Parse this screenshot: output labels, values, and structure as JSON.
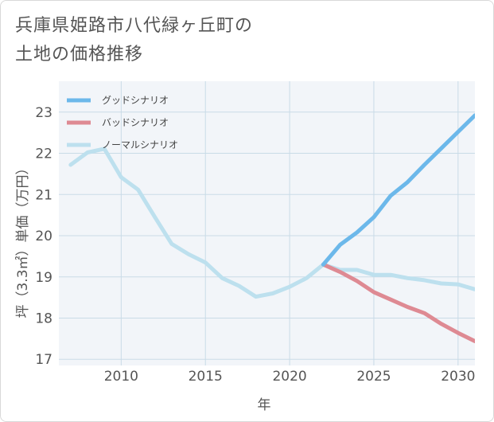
{
  "title_lines": [
    "兵庫県姫路市八代緑ヶ丘町の",
    "土地の価格推移"
  ],
  "colors": {
    "good": "#6cb8ea",
    "bad": "#de8a93",
    "normal": "#bde0ee",
    "grid": "#c9dbe7",
    "plot_bg": "#f2f5f9"
  },
  "chart_data": {
    "type": "line",
    "xlabel": "年",
    "ylabel": "坪（3.3㎡）単価（万円）",
    "xlim": [
      2006.3,
      2031
    ],
    "ylim": [
      16.85,
      23.75
    ],
    "xticks": [
      2010,
      2015,
      2020,
      2025,
      2030
    ],
    "yticks": [
      17,
      18,
      19,
      20,
      21,
      22,
      23
    ],
    "legend_position": "top-left",
    "series": [
      {
        "name": "グッドシナリオ",
        "key": "good",
        "x": [
          2022,
          2023,
          2024,
          2025,
          2026,
          2027,
          2028,
          2029,
          2030,
          2031
        ],
        "y": [
          19.3,
          19.78,
          20.08,
          20.45,
          20.97,
          21.3,
          21.72,
          22.12,
          22.52,
          22.92
        ]
      },
      {
        "name": "バッドシナリオ",
        "key": "bad",
        "x": [
          2022,
          2023,
          2024,
          2025,
          2026,
          2027,
          2028,
          2029,
          2030,
          2031
        ],
        "y": [
          19.3,
          19.12,
          18.9,
          18.63,
          18.45,
          18.27,
          18.12,
          17.86,
          17.64,
          17.44
        ]
      },
      {
        "name": "ノーマルシナリオ",
        "key": "normal",
        "x": [
          2007,
          2008,
          2009,
          2010,
          2011,
          2012,
          2013,
          2014,
          2015,
          2016,
          2017,
          2018,
          2019,
          2020,
          2021,
          2022,
          2023,
          2024,
          2025,
          2026,
          2027,
          2028,
          2029,
          2030,
          2031
        ],
        "y": [
          21.72,
          22.02,
          22.11,
          21.42,
          21.12,
          20.45,
          19.8,
          19.55,
          19.35,
          18.97,
          18.78,
          18.52,
          18.6,
          18.76,
          18.97,
          19.3,
          19.17,
          19.17,
          19.05,
          19.05,
          18.97,
          18.92,
          18.84,
          18.82,
          18.7
        ]
      }
    ]
  }
}
